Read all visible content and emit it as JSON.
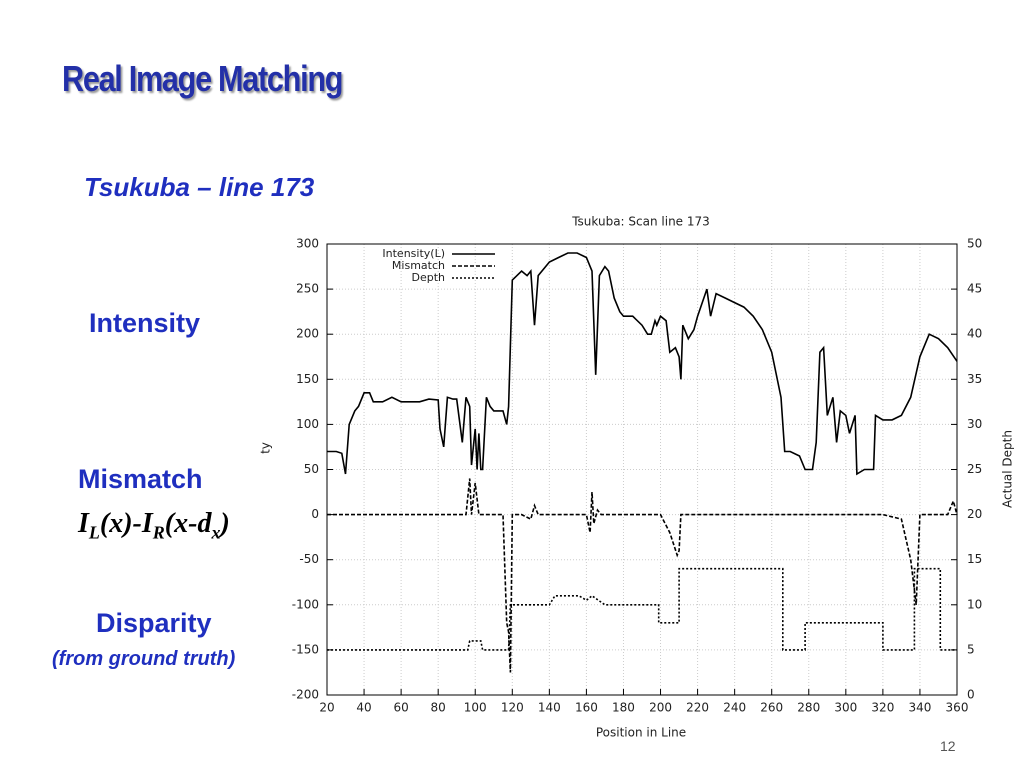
{
  "slide": {
    "title": "Real Image Matching",
    "subtitle": "Tsukuba – line 173",
    "labels": [
      "Intensity",
      "Mismatch",
      "Disparity",
      "(from ground truth)"
    ],
    "formula": [
      "I",
      "L",
      "(x)-I",
      "R",
      "(x-d",
      "x",
      ")"
    ],
    "page_number": "12"
  },
  "chart_data": {
    "type": "line",
    "title": "Tsukuba: Scan line 173",
    "xlabel": "Position in Line",
    "ylabel": "ty",
    "y2label": "Actual Depth",
    "xlim": [
      20,
      360
    ],
    "xticks": [
      20,
      40,
      60,
      80,
      100,
      120,
      140,
      160,
      180,
      200,
      220,
      240,
      260,
      280,
      300,
      320,
      340,
      360
    ],
    "ylim": [
      -200,
      300
    ],
    "yticks": [
      -200,
      -150,
      -100,
      -50,
      0,
      50,
      100,
      150,
      200,
      250,
      300
    ],
    "y2lim": [
      0,
      50
    ],
    "y2ticks": [
      0,
      5,
      10,
      15,
      20,
      25,
      30,
      35,
      40,
      45,
      50
    ],
    "grid": true,
    "legend": "upper left",
    "series": [
      {
        "name": "Intensity(L)",
        "color": "#000000",
        "dash": "solid",
        "x": [
          20,
          25,
          28,
          30,
          32,
          35,
          37,
          40,
          43,
          45,
          50,
          55,
          60,
          65,
          70,
          75,
          80,
          81,
          83,
          85,
          88,
          90,
          93,
          95,
          97,
          98,
          100,
          101,
          102,
          103,
          104,
          106,
          108,
          110,
          115,
          117,
          118,
          120,
          125,
          128,
          130,
          132,
          134,
          140,
          145,
          150,
          155,
          160,
          163,
          165,
          167,
          170,
          172,
          175,
          178,
          180,
          185,
          190,
          193,
          195,
          197,
          198,
          200,
          203,
          205,
          208,
          210,
          211,
          212,
          215,
          218,
          220,
          225,
          227,
          230,
          235,
          240,
          245,
          250,
          255,
          260,
          265,
          267,
          270,
          275,
          278,
          282,
          284,
          286,
          288,
          290,
          293,
          295,
          297,
          300,
          302,
          305,
          306,
          310,
          315,
          316,
          320,
          325,
          330,
          335,
          340,
          345,
          350,
          355,
          360
        ],
        "values": [
          70,
          70,
          68,
          45,
          100,
          115,
          120,
          135,
          135,
          125,
          125,
          130,
          125,
          125,
          125,
          128,
          127,
          95,
          75,
          130,
          128,
          128,
          80,
          130,
          120,
          55,
          95,
          50,
          90,
          50,
          50,
          130,
          120,
          115,
          115,
          100,
          120,
          260,
          270,
          265,
          270,
          210,
          265,
          280,
          285,
          290,
          290,
          285,
          270,
          155,
          265,
          275,
          270,
          240,
          225,
          220,
          220,
          210,
          200,
          200,
          215,
          210,
          220,
          215,
          180,
          185,
          175,
          150,
          210,
          195,
          205,
          220,
          250,
          220,
          245,
          240,
          235,
          230,
          220,
          205,
          180,
          130,
          70,
          70,
          65,
          50,
          50,
          80,
          180,
          185,
          110,
          130,
          80,
          115,
          110,
          90,
          110,
          45,
          50,
          50,
          110,
          105,
          105,
          110,
          130,
          175,
          200,
          195,
          185,
          170
        ]
      },
      {
        "name": "Mismatch",
        "color": "#000000",
        "dash": "dashed",
        "x": [
          20,
          40,
          60,
          80,
          95,
          97,
          98,
          100,
          102,
          110,
          115,
          117,
          118,
          119,
          120,
          125,
          130,
          132,
          134,
          150,
          160,
          162,
          163,
          164,
          166,
          168,
          180,
          190,
          200,
          205,
          209,
          210,
          211,
          220,
          240,
          260,
          280,
          300,
          320,
          330,
          335,
          338,
          340,
          350,
          355,
          358,
          360
        ],
        "values": [
          0,
          0,
          0,
          0,
          0,
          40,
          0,
          35,
          0,
          0,
          0,
          -120,
          -130,
          -175,
          0,
          0,
          -5,
          10,
          0,
          0,
          0,
          -20,
          25,
          -10,
          5,
          0,
          0,
          0,
          0,
          -20,
          -45,
          -40,
          0,
          0,
          0,
          0,
          0,
          0,
          0,
          -5,
          -50,
          -100,
          0,
          0,
          0,
          15,
          0
        ]
      },
      {
        "name": "Depth",
        "color": "#000000",
        "dash": "dotted",
        "axis": "y2",
        "x": [
          20,
          96,
          97,
          103,
          104,
          118,
          119,
          140,
          143,
          156,
          160,
          163,
          170,
          199,
          199,
          210,
          210,
          266,
          266,
          278,
          278,
          320,
          320,
          337,
          337,
          351,
          351,
          360
        ],
        "values": [
          5,
          5,
          6,
          6,
          5,
          5,
          10,
          10,
          11,
          11,
          10.5,
          11,
          10,
          10,
          8,
          8,
          14,
          14,
          5,
          5,
          8,
          8,
          5,
          5,
          14,
          14,
          5,
          5
        ]
      }
    ]
  }
}
